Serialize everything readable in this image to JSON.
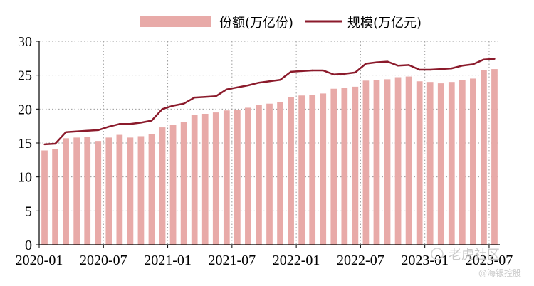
{
  "chart_data": {
    "type": "bar+line",
    "categories": [
      "2020-01",
      "2020-02",
      "2020-03",
      "2020-04",
      "2020-05",
      "2020-06",
      "2020-07",
      "2020-08",
      "2020-09",
      "2020-10",
      "2020-11",
      "2020-12",
      "2021-01",
      "2021-02",
      "2021-03",
      "2021-04",
      "2021-05",
      "2021-06",
      "2021-07",
      "2021-08",
      "2021-09",
      "2021-10",
      "2021-11",
      "2021-12",
      "2022-01",
      "2022-02",
      "2022-03",
      "2022-04",
      "2022-05",
      "2022-06",
      "2022-07",
      "2022-08",
      "2022-09",
      "2022-10",
      "2022-11",
      "2022-12",
      "2023-01",
      "2023-02",
      "2023-03",
      "2023-04",
      "2023-05",
      "2023-06",
      "2023-07"
    ],
    "x_tick_labels": [
      "2020-01",
      "2020-07",
      "2021-01",
      "2021-07",
      "2022-01",
      "2022-07",
      "2023-01",
      "2023-07"
    ],
    "ylim": [
      0,
      30
    ],
    "yticks": [
      0,
      5,
      10,
      15,
      20,
      25,
      30
    ],
    "grid": true,
    "legend_placement": "top-center",
    "series": [
      {
        "name": "份额(万亿份)",
        "type": "bar",
        "color": "#e8aaa8",
        "values": [
          13.9,
          14.1,
          15.7,
          15.8,
          15.9,
          15.3,
          15.8,
          16.2,
          15.8,
          16.0,
          16.3,
          17.3,
          17.7,
          18.1,
          19.1,
          19.3,
          19.5,
          19.8,
          19.9,
          20.2,
          20.6,
          20.8,
          21.0,
          21.8,
          22.0,
          22.1,
          22.3,
          23.0,
          23.1,
          23.3,
          24.2,
          24.3,
          24.4,
          24.7,
          24.8,
          24.1,
          24.0,
          23.8,
          24.0,
          24.3,
          24.5,
          25.8,
          25.9
        ]
      },
      {
        "name": "规模(万亿元)",
        "type": "line",
        "color": "#8b1a2b",
        "values": [
          14.8,
          14.9,
          16.6,
          16.7,
          16.8,
          16.9,
          17.4,
          17.8,
          17.8,
          18.0,
          18.3,
          20.0,
          20.5,
          20.8,
          21.7,
          21.8,
          21.9,
          22.9,
          23.2,
          23.5,
          23.9,
          24.1,
          24.3,
          25.5,
          25.6,
          25.7,
          25.7,
          25.1,
          25.2,
          25.4,
          26.7,
          26.9,
          27.0,
          26.4,
          26.5,
          25.8,
          25.8,
          25.9,
          26.0,
          26.4,
          26.6,
          27.3,
          27.4
        ]
      }
    ]
  },
  "watermark": {
    "line1": "老虎社区",
    "line2": "@海银控股"
  }
}
